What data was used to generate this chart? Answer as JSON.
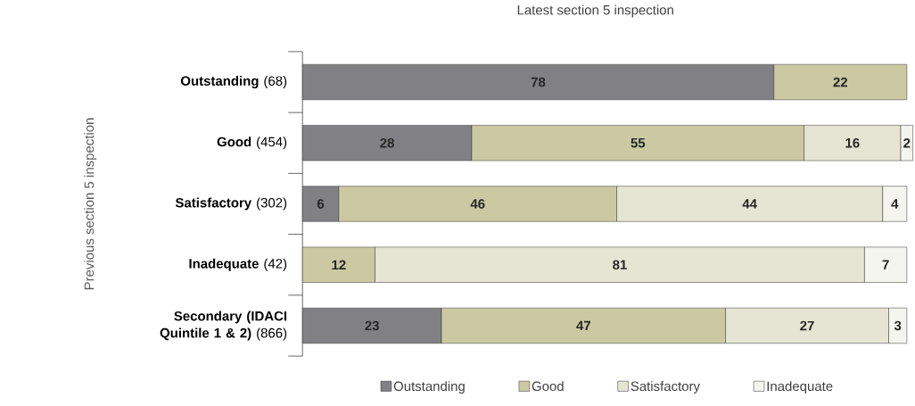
{
  "chart_data": {
    "type": "bar",
    "orientation": "horizontal",
    "stacked": true,
    "xlabel": "Latest section 5 inspection",
    "ylabel": "Previous section 5 inspection",
    "categories": [
      "**Outstanding** (68)",
      "**Good** (454)",
      "**Satisfactory** (302)",
      "**Inadequate** (42)",
      "**Secondary (IDACI Quintile 1 & 2)** (866)"
    ],
    "xlim": [
      0,
      101
    ],
    "tick_labels": "y",
    "data_labels": true,
    "legend": "bottom",
    "grid": false,
    "series": [
      {
        "name": "Outstanding",
        "color": "#808085",
        "values": [
          78,
          28,
          6,
          null,
          23
        ]
      },
      {
        "name": "Good",
        "color": "#cbc9a2",
        "values": [
          22,
          55,
          46,
          12,
          47
        ]
      },
      {
        "name": "Satisfactory",
        "color": "#e6e5d3",
        "values": [
          null,
          16,
          44,
          81,
          27
        ]
      },
      {
        "name": "Inadequate",
        "color": "#f5f5ef",
        "values": [
          null,
          2,
          4,
          7,
          3
        ]
      }
    ]
  }
}
